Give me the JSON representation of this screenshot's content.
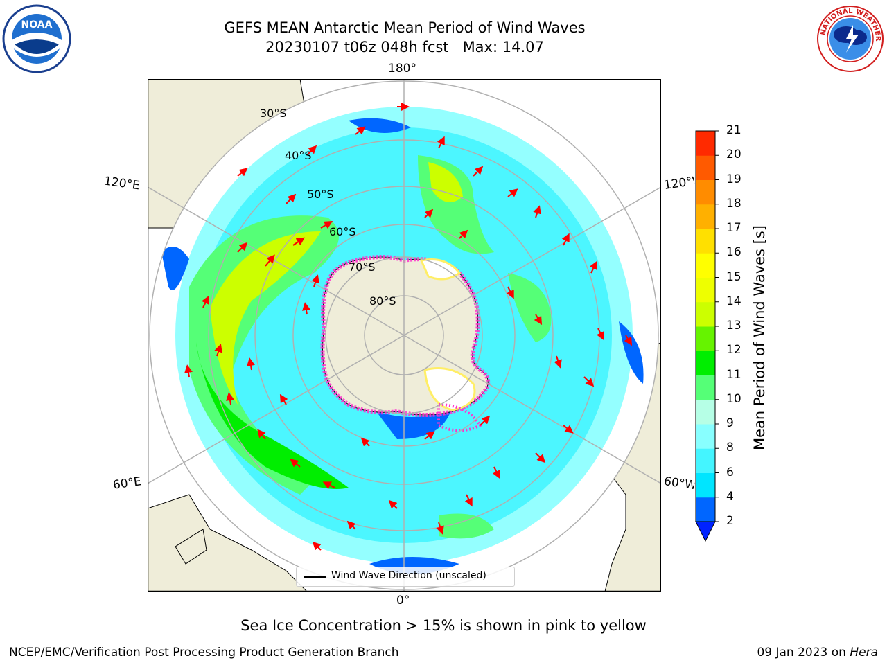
{
  "title": {
    "line1": "GEFS MEAN Antarctic Mean Period of Wind Waves",
    "line2": "20230107 t06z 048h fcst   Max: 14.07"
  },
  "logos": {
    "noaa_text": "NOAA",
    "nws_text": "NATIONAL WEATHER SERVICE"
  },
  "map": {
    "longitude_labels": {
      "top": "180°",
      "bottom": "0°",
      "upper_left": "120°E",
      "upper_right": "120°W",
      "lower_left": "60°E",
      "lower_right": "60°W"
    },
    "latitude_labels": [
      "30°S",
      "40°S",
      "50°S",
      "60°S",
      "70°S",
      "80°S"
    ],
    "colors": {
      "land": "#efedd9",
      "ocean_blank": "#ffffff",
      "grid": "#b0b0b0",
      "arrow": "#ff0000",
      "sea_ice_pink": "#ff33cc",
      "sea_ice_yellow": "#ffee66"
    },
    "legend_label": "Wind Wave Direction (unscaled)"
  },
  "colorbar": {
    "title": "Mean Period of Wind Waves [s]",
    "ticks": [
      "2",
      "4",
      "6",
      "8",
      "9",
      "10",
      "11",
      "12",
      "13",
      "14",
      "15",
      "16",
      "17",
      "18",
      "19",
      "20",
      "21"
    ],
    "level_colors": [
      "#0066ff",
      "#00e5ff",
      "#44f5ff",
      "#88ffff",
      "#b6ffe6",
      "#55ff77",
      "#00ee00",
      "#66f300",
      "#ccff00",
      "#eeff00",
      "#ffff00",
      "#ffe000",
      "#ffb000",
      "#ff8c00",
      "#ff5a00",
      "#ff2a00"
    ],
    "extend_color": "#0022ff"
  },
  "footer": {
    "note": "Sea Ice Concentration > 15% is shown in pink to yellow",
    "credit": "NCEP/EMC/Verification Post Processing Product Generation Branch",
    "date": "09 Jan 2023 on",
    "host": "Hera"
  }
}
